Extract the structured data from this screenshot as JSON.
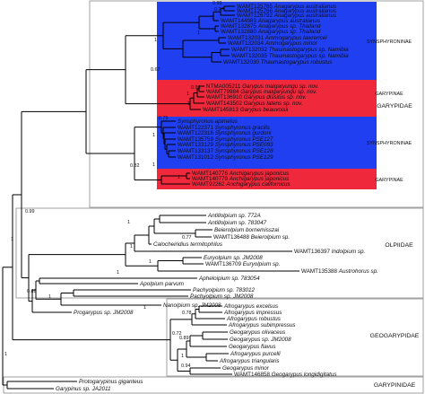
{
  "families": [
    {
      "label": "GARYPIDAE"
    },
    {
      "label": "OLPIIDAE"
    },
    {
      "label": "GEOGARYPIDAE"
    },
    {
      "label": "GARYPINIDAE"
    }
  ],
  "subfamilies": [
    {
      "label": "SYNSPHYRONINAE"
    },
    {
      "label": "GARYPINAE"
    },
    {
      "label": "SYNSPHYRONINAE"
    },
    {
      "label": "GARYPINAE"
    }
  ],
  "leaves": [
    {
      "id": "WAMT125765",
      "name": "Anagarypus australianus"
    },
    {
      "id": "WAMT125766",
      "name": "Anagarypus australianus"
    },
    {
      "id": "WAMT126792",
      "name": "Anagarypus australianus"
    },
    {
      "id": "WAMT144983",
      "name": "Anagarypus australianus"
    },
    {
      "id": "WAMT132875",
      "name": "Anagarypus sp. Thailand"
    },
    {
      "id": "WAMT132880",
      "name": "Anagarypus sp. Thailand"
    },
    {
      "id": "WAMT132031",
      "name": "Ammogarypus lawrencei"
    },
    {
      "id": "WAMT132034",
      "name": "Ammogarypus minor"
    },
    {
      "id": "WAMT132032",
      "name": "Thaumastogarypus sp. Namibia"
    },
    {
      "id": "WAMT132035",
      "name": "Thaumastogarypus sp. Namibia"
    },
    {
      "id": "WAMT132030",
      "name": "Thaumastogarypus robustus"
    },
    {
      "id": "NTMA005211",
      "name": "Garypus malgaryungu sp. nov."
    },
    {
      "id": "WAMT79984",
      "name": "Garypus malgaryungu sp. nov."
    },
    {
      "id": "WAMT136910",
      "name": "Garypus dissitus sp. nov."
    },
    {
      "id": "WAMT143502",
      "name": "Garypus latens sp. nov."
    },
    {
      "id": "WAMT145813",
      "name": "Garypus beauvoisii"
    },
    {
      "id": "",
      "name": "Synsphyronus apimelus"
    },
    {
      "id": "WAMT122371",
      "name": "Synsphyronus gracilis"
    },
    {
      "id": "WAMT122316",
      "name": "Synsphyronus gurdoni"
    },
    {
      "id": "WAMT135759",
      "name": "Synsphyronus PSE127"
    },
    {
      "id": "WAMT133129",
      "name": "Synsphyronus PSE093"
    },
    {
      "id": "WAMT133137",
      "name": "Synsphyronus PSE128"
    },
    {
      "id": "WAMT131012",
      "name": "Synsphyronus PSE129"
    },
    {
      "id": "WAMT140776",
      "name": "Anchigarypus japonicus"
    },
    {
      "id": "WAMT140779",
      "name": "Anchigarypus japonicus"
    },
    {
      "id": "WAMT92262",
      "name": "Anchigarypus californicus"
    },
    {
      "id": "",
      "name": "Antillolpium sp. 772A"
    },
    {
      "id": "",
      "name": "Antillolpium sp. 783047"
    },
    {
      "id": "",
      "name": "Beierolpium bornemisszai"
    },
    {
      "id": "WAMT136488",
      "name": "Beierolpium sp."
    },
    {
      "id": "",
      "name": "Calocheiridius termitophilus"
    },
    {
      "id": "WAMT136397",
      "name": "Indolpium sp."
    },
    {
      "id": "",
      "name": "Euryolpium sp. JM2008"
    },
    {
      "id": "WAMT136709",
      "name": "Euryolpium sp."
    },
    {
      "id": "WAMT135388",
      "name": "Austrohorus sp."
    },
    {
      "id": "",
      "name": "Apheloipium sp. 783054"
    },
    {
      "id": "",
      "name": "Apolpium parvum"
    },
    {
      "id": "",
      "name": "Pachyolpium sp. 783012"
    },
    {
      "id": "",
      "name": "Pachyolpium sp. JM2008"
    },
    {
      "id": "",
      "name": "Nanolpium sp. JM2008"
    },
    {
      "id": "",
      "name": "Progarypus sp. JM2008"
    },
    {
      "id": "",
      "name": "Afrogarypus excelsus"
    },
    {
      "id": "",
      "name": "Afrogarypus impressus"
    },
    {
      "id": "",
      "name": "Afrogarypus robustus"
    },
    {
      "id": "",
      "name": "Afrogarypus subimpressus"
    },
    {
      "id": "",
      "name": "Geogarypus olivaceus"
    },
    {
      "id": "",
      "name": "Geogarypus sp. JM2008"
    },
    {
      "id": "",
      "name": "Geogarypus flavus"
    },
    {
      "id": "",
      "name": "Afrogarypus purcelli"
    },
    {
      "id": "",
      "name": "Afrogarypus triangularis"
    },
    {
      "id": "",
      "name": "Geogarypus minor"
    },
    {
      "id": "WAMT146858",
      "name": "Geogarypus longidigitatus"
    },
    {
      "id": "",
      "name": "Protogarypinus giganteus"
    },
    {
      "id": "",
      "name": "Garypinus sp. JA2011"
    }
  ],
  "support": [
    {
      "label": "0.99"
    },
    {
      "label": "0.77"
    },
    {
      "label": "1"
    },
    {
      "label": "1"
    },
    {
      "label": "0.67"
    },
    {
      "label": "1"
    },
    {
      "label": "0.95"
    },
    {
      "label": "1"
    },
    {
      "label": "1"
    },
    {
      "label": "0.75"
    },
    {
      "label": "1"
    },
    {
      "label": "0.82"
    },
    {
      "label": "1"
    },
    {
      "label": "1"
    },
    {
      "label": "0.99"
    },
    {
      "label": "1"
    },
    {
      "label": "0.77"
    },
    {
      "label": "1"
    },
    {
      "label": "1"
    },
    {
      "label": "1"
    },
    {
      "label": "1"
    },
    {
      "label": "0.89"
    },
    {
      "label": "1"
    },
    {
      "label": "0.78"
    },
    {
      "label": "0.72"
    },
    {
      "label": "0.89"
    },
    {
      "label": "1"
    },
    {
      "label": "0.94"
    },
    {
      "label": "1"
    },
    {
      "label": "1"
    }
  ],
  "colors": {
    "blue_box": "#1f3ff0",
    "red_box": "#f0283c",
    "branch": "#000000",
    "frame": "#8a8a8a"
  }
}
